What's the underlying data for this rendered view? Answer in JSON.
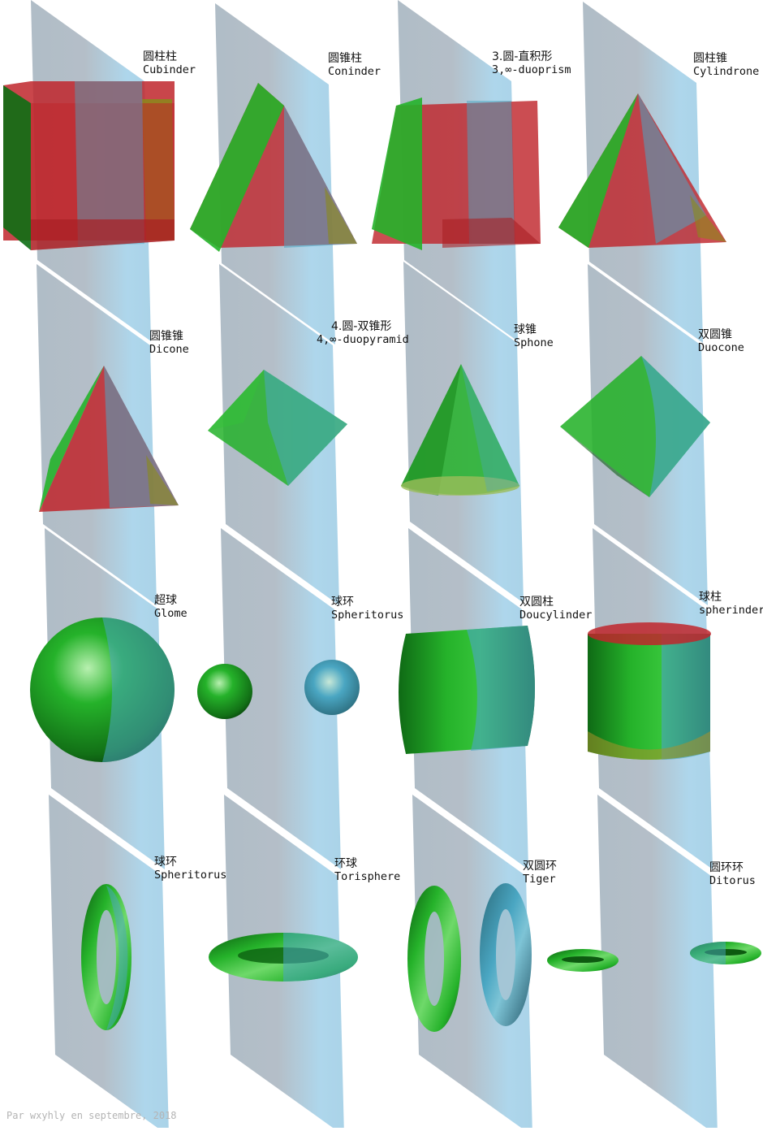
{
  "colors": {
    "plane": "#aab8c4",
    "plane_light": "#a6d2ea",
    "red": "#c0262c",
    "green": "#25b22a",
    "dark_green": "#0d6e14",
    "blue": "#4aa6c2",
    "olive": "#8a8a1a"
  },
  "figures": [
    {
      "zh": "圆柱柱",
      "en": "Cubinder",
      "shape": "cubinder"
    },
    {
      "zh": "圆锥柱",
      "en": "Coninder",
      "shape": "coninder"
    },
    {
      "zh": "3.圆-直积形",
      "en": "3,∞-duoprism",
      "shape": "duoprism"
    },
    {
      "zh": "圆柱锥",
      "en": "Cylindrone",
      "shape": "cylindrone"
    },
    {
      "zh": "圆锥锥",
      "en": "Dicone",
      "shape": "dicone"
    },
    {
      "zh": "4.圆-双锥形",
      "en": "4,∞-duopyramid",
      "shape": "duopyramid"
    },
    {
      "zh": "球锥",
      "en": "Sphone",
      "shape": "sphone"
    },
    {
      "zh": "双圆锥",
      "en": "Duocone",
      "shape": "duocone"
    },
    {
      "zh": "超球",
      "en": "Glome",
      "shape": "glome"
    },
    {
      "zh": "球环",
      "en": "Spheritorus",
      "shape": "spheritorus-balls"
    },
    {
      "zh": "双圆柱",
      "en": "Doucylinder",
      "shape": "duocylinder"
    },
    {
      "zh": "球柱",
      "en": "spherinder",
      "shape": "spherinder"
    },
    {
      "zh": "球环",
      "en": "Spheritorus",
      "shape": "spheritorus-ring"
    },
    {
      "zh": "环球",
      "en": "Torisphere",
      "shape": "torisphere"
    },
    {
      "zh": "双圆环",
      "en": "Tiger",
      "shape": "tiger"
    },
    {
      "zh": "圆环环",
      "en": "Ditorus",
      "shape": "ditorus"
    }
  ],
  "credit": "Par wxyhly en septembre, 2018"
}
